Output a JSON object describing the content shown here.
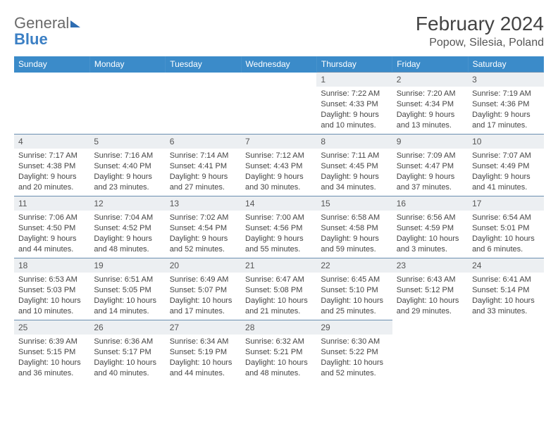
{
  "logo": {
    "text1": "General",
    "text2": "Blue"
  },
  "title": "February 2024",
  "location": "Popow, Silesia, Poland",
  "colors": {
    "header_bg": "#3b8bc9",
    "header_text": "#ffffff",
    "daynum_bg": "#eceff2",
    "border": "#6a8fb0",
    "body_text": "#444444"
  },
  "weekdays": [
    "Sunday",
    "Monday",
    "Tuesday",
    "Wednesday",
    "Thursday",
    "Friday",
    "Saturday"
  ],
  "weeks": [
    [
      null,
      null,
      null,
      null,
      {
        "n": "1",
        "sunrise": "7:22 AM",
        "sunset": "4:33 PM",
        "daylight": "9 hours and 10 minutes."
      },
      {
        "n": "2",
        "sunrise": "7:20 AM",
        "sunset": "4:34 PM",
        "daylight": "9 hours and 13 minutes."
      },
      {
        "n": "3",
        "sunrise": "7:19 AM",
        "sunset": "4:36 PM",
        "daylight": "9 hours and 17 minutes."
      }
    ],
    [
      {
        "n": "4",
        "sunrise": "7:17 AM",
        "sunset": "4:38 PM",
        "daylight": "9 hours and 20 minutes."
      },
      {
        "n": "5",
        "sunrise": "7:16 AM",
        "sunset": "4:40 PM",
        "daylight": "9 hours and 23 minutes."
      },
      {
        "n": "6",
        "sunrise": "7:14 AM",
        "sunset": "4:41 PM",
        "daylight": "9 hours and 27 minutes."
      },
      {
        "n": "7",
        "sunrise": "7:12 AM",
        "sunset": "4:43 PM",
        "daylight": "9 hours and 30 minutes."
      },
      {
        "n": "8",
        "sunrise": "7:11 AM",
        "sunset": "4:45 PM",
        "daylight": "9 hours and 34 minutes."
      },
      {
        "n": "9",
        "sunrise": "7:09 AM",
        "sunset": "4:47 PM",
        "daylight": "9 hours and 37 minutes."
      },
      {
        "n": "10",
        "sunrise": "7:07 AM",
        "sunset": "4:49 PM",
        "daylight": "9 hours and 41 minutes."
      }
    ],
    [
      {
        "n": "11",
        "sunrise": "7:06 AM",
        "sunset": "4:50 PM",
        "daylight": "9 hours and 44 minutes."
      },
      {
        "n": "12",
        "sunrise": "7:04 AM",
        "sunset": "4:52 PM",
        "daylight": "9 hours and 48 minutes."
      },
      {
        "n": "13",
        "sunrise": "7:02 AM",
        "sunset": "4:54 PM",
        "daylight": "9 hours and 52 minutes."
      },
      {
        "n": "14",
        "sunrise": "7:00 AM",
        "sunset": "4:56 PM",
        "daylight": "9 hours and 55 minutes."
      },
      {
        "n": "15",
        "sunrise": "6:58 AM",
        "sunset": "4:58 PM",
        "daylight": "9 hours and 59 minutes."
      },
      {
        "n": "16",
        "sunrise": "6:56 AM",
        "sunset": "4:59 PM",
        "daylight": "10 hours and 3 minutes."
      },
      {
        "n": "17",
        "sunrise": "6:54 AM",
        "sunset": "5:01 PM",
        "daylight": "10 hours and 6 minutes."
      }
    ],
    [
      {
        "n": "18",
        "sunrise": "6:53 AM",
        "sunset": "5:03 PM",
        "daylight": "10 hours and 10 minutes."
      },
      {
        "n": "19",
        "sunrise": "6:51 AM",
        "sunset": "5:05 PM",
        "daylight": "10 hours and 14 minutes."
      },
      {
        "n": "20",
        "sunrise": "6:49 AM",
        "sunset": "5:07 PM",
        "daylight": "10 hours and 17 minutes."
      },
      {
        "n": "21",
        "sunrise": "6:47 AM",
        "sunset": "5:08 PM",
        "daylight": "10 hours and 21 minutes."
      },
      {
        "n": "22",
        "sunrise": "6:45 AM",
        "sunset": "5:10 PM",
        "daylight": "10 hours and 25 minutes."
      },
      {
        "n": "23",
        "sunrise": "6:43 AM",
        "sunset": "5:12 PM",
        "daylight": "10 hours and 29 minutes."
      },
      {
        "n": "24",
        "sunrise": "6:41 AM",
        "sunset": "5:14 PM",
        "daylight": "10 hours and 33 minutes."
      }
    ],
    [
      {
        "n": "25",
        "sunrise": "6:39 AM",
        "sunset": "5:15 PM",
        "daylight": "10 hours and 36 minutes."
      },
      {
        "n": "26",
        "sunrise": "6:36 AM",
        "sunset": "5:17 PM",
        "daylight": "10 hours and 40 minutes."
      },
      {
        "n": "27",
        "sunrise": "6:34 AM",
        "sunset": "5:19 PM",
        "daylight": "10 hours and 44 minutes."
      },
      {
        "n": "28",
        "sunrise": "6:32 AM",
        "sunset": "5:21 PM",
        "daylight": "10 hours and 48 minutes."
      },
      {
        "n": "29",
        "sunrise": "6:30 AM",
        "sunset": "5:22 PM",
        "daylight": "10 hours and 52 minutes."
      },
      null,
      null
    ]
  ],
  "labels": {
    "sunrise": "Sunrise:",
    "sunset": "Sunset:",
    "daylight": "Daylight:"
  }
}
